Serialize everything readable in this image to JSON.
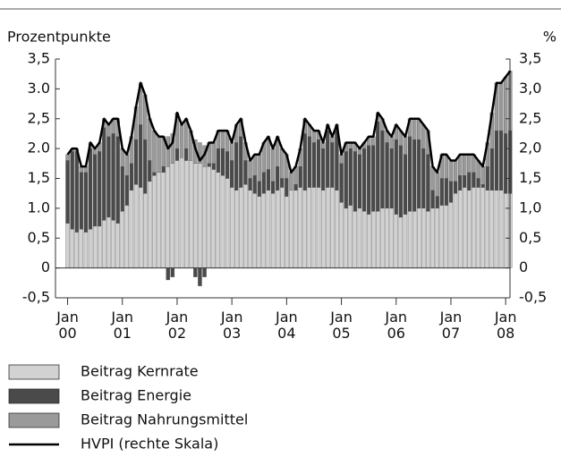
{
  "chart_data": {
    "type": "stacked_bar_line",
    "ylabel": "Prozentpunkte",
    "y2label": "%",
    "categories": [
      [
        "Jan",
        "00"
      ],
      null,
      null,
      null,
      null,
      null,
      null,
      null,
      null,
      null,
      null,
      null,
      [
        "Jan",
        "01"
      ],
      null,
      null,
      null,
      null,
      null,
      null,
      null,
      null,
      null,
      null,
      null,
      [
        "Jan",
        "02"
      ],
      null,
      null,
      null,
      null,
      null,
      null,
      null,
      null,
      null,
      null,
      null,
      [
        "Jan",
        "03"
      ],
      null,
      null,
      null,
      null,
      null,
      null,
      null,
      null,
      null,
      null,
      null,
      [
        "Jan",
        "04"
      ],
      null,
      null,
      null,
      null,
      null,
      null,
      null,
      null,
      null,
      null,
      null,
      [
        "Jan",
        "05"
      ],
      null,
      null,
      null,
      null,
      null,
      null,
      null,
      null,
      null,
      null,
      null,
      [
        "Jan",
        "06"
      ],
      null,
      null,
      null,
      null,
      null,
      null,
      null,
      null,
      null,
      null,
      null,
      [
        "Jan",
        "07"
      ],
      null,
      null,
      null,
      null,
      null,
      null,
      null,
      null,
      null,
      null,
      null,
      [
        "Jan",
        "08"
      ],
      null
    ],
    "series": [
      {
        "name": "Beitrag Kernrate",
        "color": "#d2d2d2",
        "values": [
          0.75,
          0.65,
          0.6,
          0.65,
          0.6,
          0.65,
          0.7,
          0.7,
          0.8,
          0.85,
          0.8,
          0.75,
          0.95,
          1.05,
          1.3,
          1.4,
          1.35,
          1.25,
          1.45,
          1.55,
          1.6,
          1.6,
          1.7,
          1.75,
          1.8,
          1.85,
          1.8,
          1.8,
          1.75,
          1.75,
          1.7,
          1.7,
          1.65,
          1.6,
          1.55,
          1.5,
          1.35,
          1.3,
          1.35,
          1.4,
          1.3,
          1.25,
          1.2,
          1.25,
          1.3,
          1.25,
          1.3,
          1.35,
          1.2,
          1.3,
          1.3,
          1.35,
          1.3,
          1.35,
          1.35,
          1.35,
          1.3,
          1.35,
          1.35,
          1.3,
          1.1,
          1.0,
          1.05,
          0.95,
          1.0,
          0.95,
          0.9,
          0.95,
          0.95,
          1.0,
          1.0,
          1.0,
          0.9,
          0.85,
          0.9,
          0.95,
          0.95,
          1.0,
          1.0,
          0.95,
          1.0,
          1.0,
          1.05,
          1.05,
          1.1,
          1.25,
          1.3,
          1.35,
          1.3,
          1.35,
          1.35,
          1.35,
          1.3,
          1.3,
          1.3,
          1.3,
          1.25,
          1.25
        ]
      },
      {
        "name": "Beitrag Energie",
        "color": "#4a4a4a",
        "values": [
          1.05,
          1.3,
          1.35,
          0.95,
          1.0,
          1.35,
          1.2,
          1.25,
          1.55,
          1.35,
          1.45,
          1.45,
          0.75,
          0.5,
          0.45,
          0.75,
          1.05,
          0.9,
          0.35,
          0.05,
          0.0,
          0.1,
          -0.2,
          -0.15,
          0.2,
          0.0,
          0.2,
          0.0,
          -0.15,
          -0.3,
          -0.15,
          0.05,
          0.1,
          0.4,
          0.45,
          0.45,
          0.45,
          0.8,
          0.85,
          0.4,
          0.2,
          0.3,
          0.25,
          0.35,
          0.35,
          0.2,
          0.4,
          0.15,
          0.3,
          0.0,
          0.1,
          0.35,
          0.95,
          0.85,
          0.75,
          0.8,
          0.7,
          0.95,
          0.75,
          1.0,
          0.65,
          0.95,
          0.95,
          1.0,
          0.9,
          1.05,
          1.15,
          1.1,
          1.5,
          1.3,
          1.1,
          1.0,
          1.25,
          1.2,
          1.0,
          1.25,
          1.2,
          1.15,
          1.0,
          0.95,
          0.3,
          0.2,
          0.45,
          0.45,
          0.35,
          0.2,
          0.25,
          0.2,
          0.3,
          0.25,
          0.15,
          0.05,
          0.4,
          0.7,
          1.0,
          1.0,
          1.0,
          1.05
        ]
      },
      {
        "name": "Beitrag Nahrungsmittel",
        "color": "#9a9a9a",
        "values": [
          0.1,
          0.05,
          0.05,
          0.1,
          0.1,
          0.1,
          0.1,
          0.15,
          0.15,
          0.2,
          0.25,
          0.3,
          0.3,
          0.35,
          0.45,
          0.55,
          0.7,
          0.75,
          0.7,
          0.7,
          0.6,
          0.5,
          0.5,
          0.5,
          0.6,
          0.55,
          0.5,
          0.5,
          0.4,
          0.35,
          0.35,
          0.35,
          0.35,
          0.3,
          0.3,
          0.35,
          0.3,
          0.3,
          0.3,
          0.3,
          0.3,
          0.35,
          0.45,
          0.5,
          0.55,
          0.55,
          0.5,
          0.5,
          0.4,
          0.3,
          0.3,
          0.3,
          0.25,
          0.2,
          0.2,
          0.15,
          0.1,
          0.1,
          0.1,
          0.1,
          0.15,
          0.15,
          0.1,
          0.15,
          0.1,
          0.1,
          0.15,
          0.15,
          0.15,
          0.2,
          0.2,
          0.2,
          0.25,
          0.25,
          0.3,
          0.3,
          0.35,
          0.35,
          0.4,
          0.4,
          0.4,
          0.4,
          0.4,
          0.4,
          0.35,
          0.35,
          0.35,
          0.35,
          0.3,
          0.3,
          0.3,
          0.3,
          0.4,
          0.6,
          0.8,
          0.8,
          0.95,
          1.0
        ]
      },
      {
        "name": "HVPI (rechte Skala)",
        "color": "#000000",
        "axis": "y2",
        "type": "line",
        "values": [
          1.9,
          2.0,
          2.0,
          1.7,
          1.7,
          2.1,
          2.0,
          2.1,
          2.5,
          2.4,
          2.5,
          2.5,
          2.0,
          1.9,
          2.2,
          2.7,
          3.1,
          2.9,
          2.5,
          2.3,
          2.2,
          2.2,
          2.0,
          2.1,
          2.6,
          2.4,
          2.5,
          2.3,
          2.0,
          1.8,
          1.9,
          2.1,
          2.1,
          2.3,
          2.3,
          2.3,
          2.1,
          2.4,
          2.5,
          2.1,
          1.8,
          1.9,
          1.9,
          2.1,
          2.2,
          2.0,
          2.2,
          2.0,
          1.9,
          1.6,
          1.7,
          2.0,
          2.5,
          2.4,
          2.3,
          2.3,
          2.1,
          2.4,
          2.2,
          2.4,
          1.9,
          2.1,
          2.1,
          2.1,
          2.0,
          2.1,
          2.2,
          2.2,
          2.6,
          2.5,
          2.3,
          2.2,
          2.4,
          2.3,
          2.2,
          2.5,
          2.5,
          2.5,
          2.4,
          2.3,
          1.7,
          1.6,
          1.9,
          1.9,
          1.8,
          1.8,
          1.9,
          1.9,
          1.9,
          1.9,
          1.8,
          1.7,
          2.1,
          2.6,
          3.1,
          3.1,
          3.2,
          3.3
        ]
      }
    ],
    "ylim": [
      -0.5,
      3.5
    ],
    "yticks": [
      {
        "value": 3.5,
        "label": "3,5"
      },
      {
        "value": 3,
        "label": "3.0"
      },
      {
        "value": 2.5,
        "label": "2,5"
      },
      {
        "value": 2,
        "label": "2.0"
      },
      {
        "value": 1.5,
        "label": "1,5"
      },
      {
        "value": 1,
        "label": "1.0"
      },
      {
        "value": 0.5,
        "label": "0,5"
      },
      0,
      {
        "value": -0.5,
        "label": "-0,5"
      }
    ],
    "y2lim": [
      -0.5,
      3.5
    ],
    "y2ticks": [
      {
        "value": 3.5,
        "label": "3,5"
      },
      {
        "value": 3,
        "label": "3,0"
      },
      {
        "value": 2.5,
        "label": "2,5"
      },
      {
        "value": 2,
        "label": "2,0"
      },
      {
        "value": 1.5,
        "label": "1,5"
      },
      {
        "value": 1,
        "label": "1,0"
      },
      {
        "value": 0.5,
        "label": "0,5"
      },
      0,
      {
        "value": -0.5,
        "label": "-0,5"
      }
    ],
    "legend": "bottom"
  }
}
